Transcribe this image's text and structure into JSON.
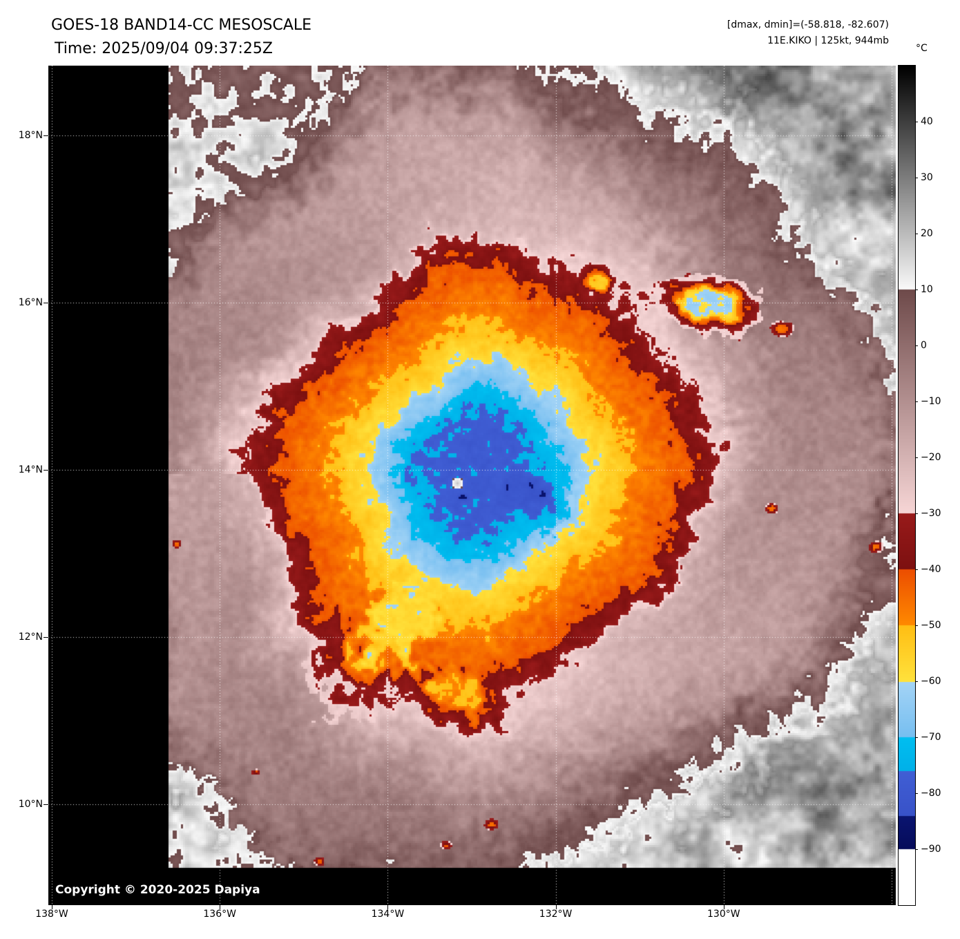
{
  "header": {
    "title": "GOES-18 BAND14-CC MESOSCALE",
    "time_line": "Time: 2025/09/04 09:37:25Z",
    "dmax_dmin": "[dmax, dmin]=(-58.818, -82.607)",
    "storm_info": "11E.KIKO | 125kt, 944mb"
  },
  "storm": {
    "id": "11E.KIKO",
    "intensity": "125kt",
    "pressure": "944mb",
    "dmax_c": -58.818,
    "dmin_c": -82.607,
    "satellite": "GOES-18",
    "band": "BAND14-CC",
    "sector": "MESOSCALE",
    "time_utc": "2025/09/04 09:37:25Z"
  },
  "colorbar": {
    "unit": "°C",
    "range_c": [
      50,
      -100
    ],
    "ticks": [
      {
        "label": "40",
        "value": 40
      },
      {
        "label": "30",
        "value": 30
      },
      {
        "label": "20",
        "value": 20
      },
      {
        "label": "10",
        "value": 10
      },
      {
        "label": "0",
        "value": 0
      },
      {
        "label": "−10",
        "value": -10
      },
      {
        "label": "−20",
        "value": -20
      },
      {
        "label": "−30",
        "value": -30
      },
      {
        "label": "−40",
        "value": -40
      },
      {
        "label": "−50",
        "value": -50
      },
      {
        "label": "−60",
        "value": -60
      },
      {
        "label": "−70",
        "value": -70
      },
      {
        "label": "−80",
        "value": -80
      },
      {
        "label": "−90",
        "value": -90
      }
    ],
    "segments": [
      {
        "t": [
          50,
          10
        ],
        "rgb": [
          [
            0,
            0,
            0
          ],
          [
            250,
            250,
            250
          ]
        ]
      },
      {
        "t": [
          10,
          -30
        ],
        "rgb": [
          [
            110,
            74,
            74
          ],
          [
            247,
            214,
            214
          ]
        ]
      },
      {
        "t": [
          -30,
          -40
        ],
        "rgb": [
          [
            152,
            26,
            26
          ],
          [
            124,
            16,
            16
          ]
        ]
      },
      {
        "t": [
          -40,
          -50
        ],
        "rgb": [
          [
            236,
            78,
            0
          ],
          [
            255,
            138,
            0
          ]
        ]
      },
      {
        "t": [
          -50,
          -60
        ],
        "rgb": [
          [
            255,
            190,
            20
          ],
          [
            255,
            226,
            60
          ]
        ]
      },
      {
        "t": [
          -60,
          -70
        ],
        "rgb": [
          [
            164,
            212,
            246
          ],
          [
            118,
            190,
            240
          ]
        ]
      },
      {
        "t": [
          -70,
          -76
        ],
        "rgb": [
          [
            0,
            190,
            240
          ],
          [
            0,
            176,
            232
          ]
        ]
      },
      {
        "t": [
          -76,
          -84
        ],
        "rgb": [
          [
            64,
            94,
            212
          ],
          [
            56,
            82,
            200
          ]
        ]
      },
      {
        "t": [
          -84,
          -90
        ],
        "rgb": [
          [
            10,
            20,
            112
          ],
          [
            6,
            12,
            90
          ]
        ]
      },
      {
        "t": [
          -90,
          -100
        ],
        "rgb": [
          [
            255,
            255,
            255
          ],
          [
            255,
            255,
            255
          ]
        ]
      }
    ]
  },
  "map": {
    "lat_ticks": [
      {
        "label": "18°N",
        "value": 18
      },
      {
        "label": "16°N",
        "value": 16
      },
      {
        "label": "14°N",
        "value": 14
      },
      {
        "label": "12°N",
        "value": 12
      },
      {
        "label": "10°N",
        "value": 10
      }
    ],
    "lon_ticks": [
      {
        "label": "138°W",
        "value": 138
      },
      {
        "label": "136°W",
        "value": 136
      },
      {
        "label": "134°W",
        "value": 134
      },
      {
        "label": "132°W",
        "value": 132
      },
      {
        "label": "130°W",
        "value": 130
      }
    ],
    "grid_style": "dotted-white",
    "copyright": "Copyright © 2020-2025 Dapiya"
  }
}
